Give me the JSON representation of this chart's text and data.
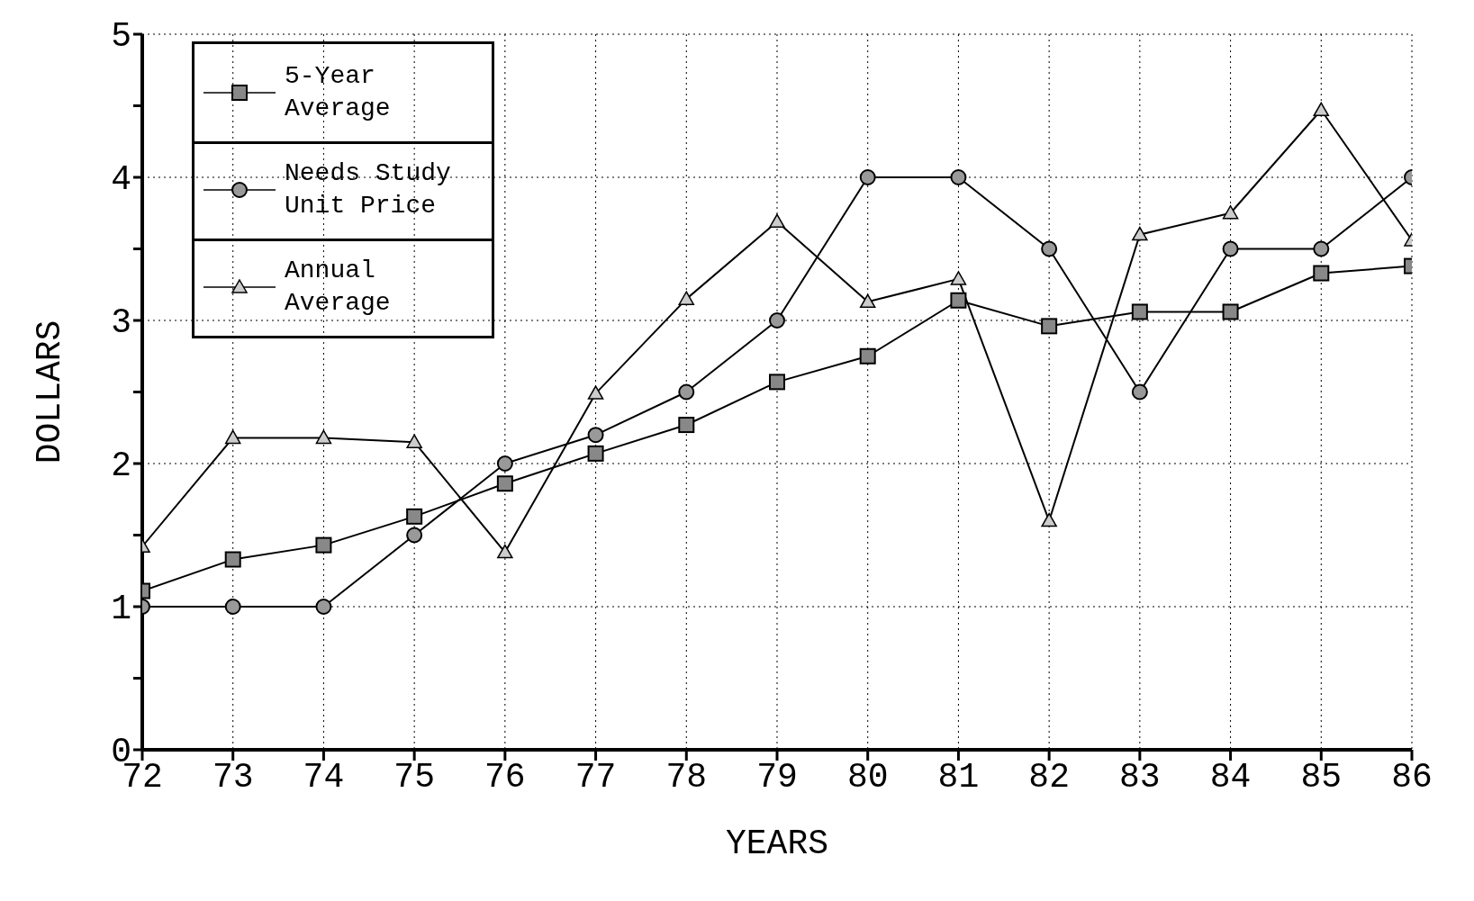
{
  "chart_data": {
    "type": "line",
    "xlabel": "YEARS",
    "ylabel": "DOLLARS",
    "x": [
      72,
      73,
      74,
      75,
      76,
      77,
      78,
      79,
      80,
      81,
      82,
      83,
      84,
      85,
      86
    ],
    "xlim": [
      72,
      86
    ],
    "xticks": [
      72,
      73,
      74,
      75,
      76,
      77,
      78,
      79,
      80,
      81,
      82,
      83,
      84,
      85,
      86
    ],
    "ylim": [
      0,
      5
    ],
    "yticks": [
      0,
      {
        "value": 0.5,
        "label": null
      },
      1,
      {
        "value": 1.5,
        "label": null
      },
      2,
      {
        "value": 2.5,
        "label": null
      },
      3,
      {
        "value": 3.5,
        "label": null
      },
      4,
      {
        "value": 4.5,
        "label": null
      },
      5
    ],
    "grid": true,
    "legend": "top left",
    "line_style": "solid",
    "series": [
      {
        "name": "5-Year Average",
        "color": "#000000",
        "marker": "square",
        "values": [
          1.11,
          1.33,
          1.43,
          1.63,
          1.86,
          2.07,
          2.27,
          2.57,
          2.75,
          3.14,
          2.96,
          3.06,
          3.06,
          3.33,
          3.38
        ]
      },
      {
        "name": "Needs Study Unit Price",
        "color": "#000000",
        "marker": "circle",
        "values": [
          1,
          1,
          1,
          1.5,
          2,
          2.2,
          2.5,
          3,
          4,
          4,
          3.5,
          2.5,
          3.5,
          3.5,
          4
        ]
      },
      {
        "name": "Annual Average",
        "color": "#000000",
        "marker": "triangle",
        "values": [
          1.42,
          2.18,
          2.18,
          2.15,
          1.38,
          2.49,
          3.15,
          3.69,
          3.13,
          3.29,
          1.6,
          3.6,
          3.75,
          4.47,
          3.56
        ]
      }
    ]
  }
}
